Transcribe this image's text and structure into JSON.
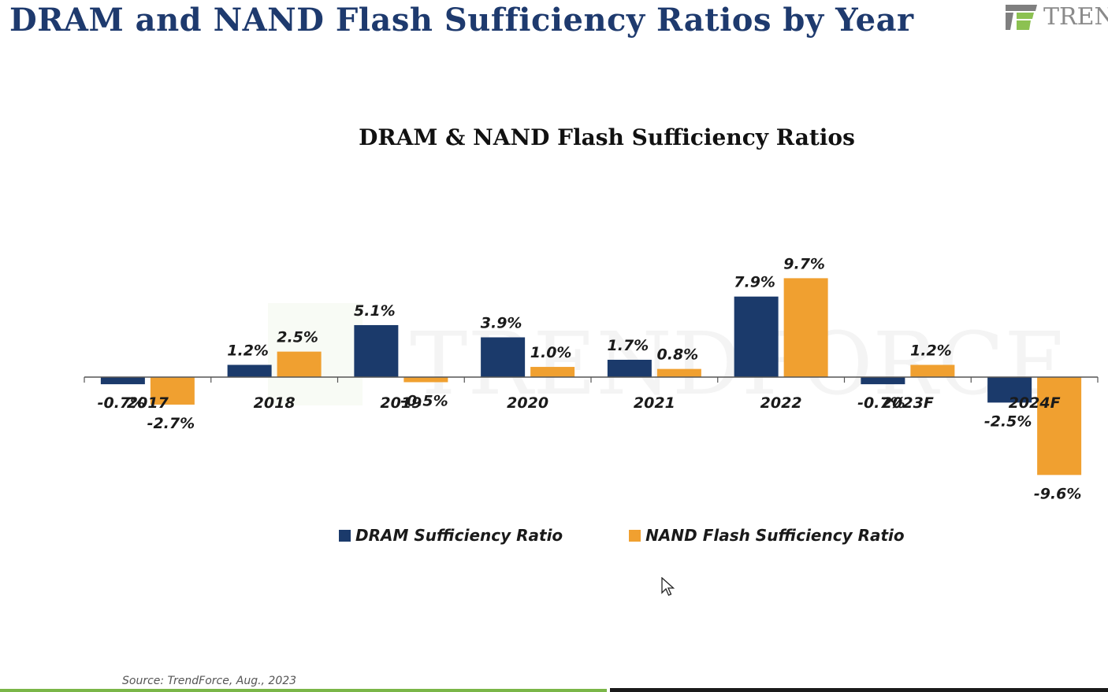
{
  "page": {
    "title": "DRAM and NAND Flash Sufficiency Ratios by Year",
    "logo_text": "TREN",
    "source": "Source: TrendForce, Aug., 2023"
  },
  "chart_data": {
    "type": "bar",
    "title": "DRAM & NAND Flash Sufficiency Ratios",
    "xlabel": "",
    "ylabel": "",
    "categories": [
      "2017",
      "2018",
      "2019",
      "2020",
      "2021",
      "2022",
      "2023F",
      "2024F"
    ],
    "series": [
      {
        "name": "DRAM Sufficiency Ratio",
        "color": "#1b3a6b",
        "values": [
          -0.7,
          1.2,
          5.1,
          3.9,
          1.7,
          7.9,
          -0.7,
          -2.5
        ],
        "labels": [
          "-0.7%",
          "1.2%",
          "5.1%",
          "3.9%",
          "1.7%",
          "7.9%",
          "-0.7%",
          "-2.5%"
        ]
      },
      {
        "name": "NAND Flash Sufficiency Ratio",
        "color": "#f0a030",
        "values": [
          -2.7,
          2.5,
          -0.5,
          1.0,
          0.8,
          9.7,
          1.2,
          -9.6
        ],
        "labels": [
          "-2.7%",
          "2.5%",
          "-0.5%",
          "1.0%",
          "0.8%",
          "9.7%",
          "1.2%",
          "-9.6%"
        ]
      }
    ],
    "ylim": [
      -11,
      12
    ],
    "grid": false,
    "legend_position": "bottom",
    "watermark": "TRENDFORCE"
  }
}
